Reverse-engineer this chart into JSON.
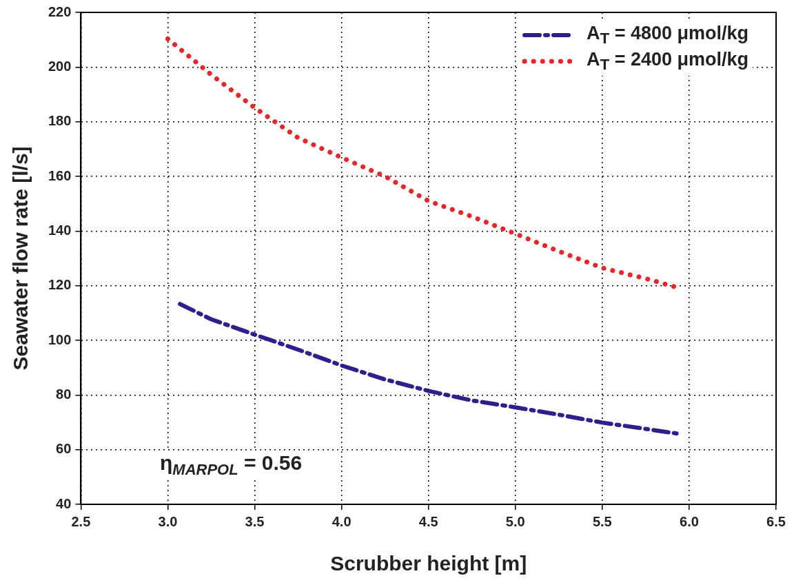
{
  "chart_data": {
    "type": "line",
    "xlabel": "Scrubber height [m]",
    "ylabel": "Seawater flow rate [l/s]",
    "xlim": [
      2.5,
      6.5
    ],
    "xticks": [
      {
        "value": 2.5,
        "label": "2.5"
      },
      {
        "value": 3,
        "label": "3.0"
      },
      {
        "value": 3.5,
        "label": "3.5"
      },
      {
        "value": 4,
        "label": "4.0"
      },
      {
        "value": 4.5,
        "label": "4.5"
      },
      {
        "value": 5,
        "label": "5.0"
      },
      {
        "value": 5.5,
        "label": "5.5"
      },
      {
        "value": 6,
        "label": "6.0"
      },
      {
        "value": 6.5,
        "label": "6.5"
      }
    ],
    "ylim": [
      40,
      220
    ],
    "yticks": [
      40,
      60,
      80,
      100,
      120,
      140,
      160,
      180,
      200,
      220
    ],
    "grid": true,
    "legend": "top right",
    "marker": "none",
    "annotations": [
      "η$_{MARPOL}$ = 0.56"
    ],
    "series": [
      {
        "name": "A$_{T}$ = 4800 μmol/kg",
        "color": "#2e1f8c",
        "line_style": "dashed",
        "x": [
          3.07,
          3.25,
          3.5,
          3.75,
          4,
          4.25,
          4.5,
          4.75,
          5,
          5.25,
          5.5,
          5.75,
          5.93
        ],
        "values": [
          113.3,
          107.7,
          102.1,
          96.6,
          90.8,
          85.7,
          81.5,
          78,
          75.5,
          72.8,
          69.9,
          67.6,
          65.9
        ]
      },
      {
        "name": "A$_{T}$ = 2400 μmol/kg",
        "color": "#e8262a",
        "line_style": "dotted",
        "x": [
          3,
          3.25,
          3.5,
          3.75,
          4,
          4.25,
          4.5,
          4.75,
          5,
          5.25,
          5.5,
          5.75,
          5.95
        ],
        "values": [
          210.3,
          197.2,
          185.1,
          174.1,
          166.9,
          160,
          151,
          145.3,
          139,
          132.6,
          126.5,
          122.6,
          119
        ]
      }
    ]
  }
}
